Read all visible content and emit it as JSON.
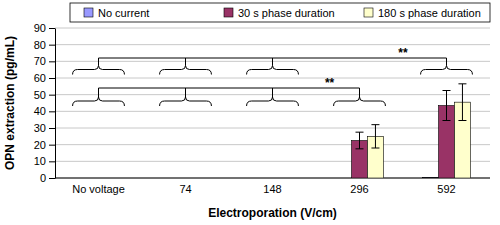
{
  "chart_data": {
    "type": "bar",
    "categories": [
      "No voltage",
      "74",
      "148",
      "296",
      "592"
    ],
    "series": [
      {
        "name": "No current",
        "color": "#9999ff",
        "values": [
          0,
          0,
          0,
          0,
          0.3
        ],
        "errors": [
          0,
          0,
          0,
          0,
          0
        ]
      },
      {
        "name": "30 s phase duration",
        "color": "#993366",
        "values": [
          0,
          0,
          0,
          22.5,
          43.5
        ],
        "errors": [
          0,
          0,
          0,
          5,
          9
        ]
      },
      {
        "name": "180 s phase duration",
        "color": "#ffffcc",
        "values": [
          0,
          0,
          0,
          25,
          45.5
        ],
        "errors": [
          0,
          0,
          0,
          7,
          11
        ]
      }
    ],
    "x_label": "Electroporation (V/cm)",
    "y_label": "OPN extraction (pg/mL)",
    "ylim": [
      0,
      90
    ],
    "yticks": [
      0,
      10,
      20,
      30,
      40,
      50,
      60,
      70,
      80,
      90
    ],
    "grid": true,
    "legend": "top",
    "annotations": [
      "**",
      "**"
    ]
  }
}
